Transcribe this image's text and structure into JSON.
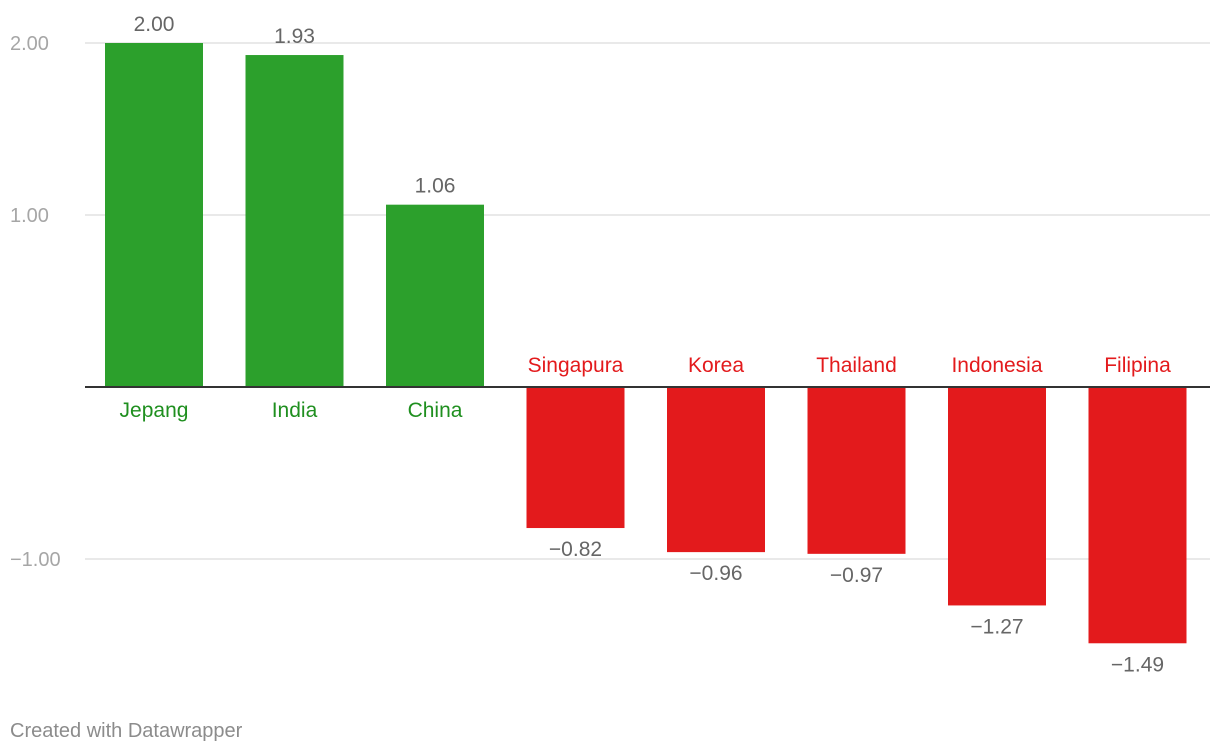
{
  "chart_data": {
    "type": "bar",
    "categories": [
      "Jepang",
      "India",
      "China",
      "Singapura",
      "Korea",
      "Thailand",
      "Indonesia",
      "Filipina"
    ],
    "values": [
      2.0,
      1.93,
      1.06,
      -0.82,
      -0.96,
      -0.97,
      -1.27,
      -1.49
    ],
    "value_labels": [
      "2.00",
      "1.93",
      "1.06",
      "−0.82",
      "−0.96",
      "−0.97",
      "−1.27",
      "−1.49"
    ],
    "y_ticks": [
      2.0,
      1.0,
      -1.0
    ],
    "y_tick_labels": [
      "2.00",
      "1.00",
      "−1.00"
    ],
    "ylim": [
      -1.49,
      2.0
    ],
    "grid": true,
    "colors": {
      "positive": "#2ca02c",
      "negative": "#e31a1c",
      "positive_label": "#1f8f1f",
      "negative_label": "#e31a1c",
      "value_label": "#666666",
      "tick_label": "#a6a6a6",
      "grid": "#e2e2e2",
      "baseline": "#333333"
    }
  },
  "footer": {
    "credit": "Created with Datawrapper"
  }
}
